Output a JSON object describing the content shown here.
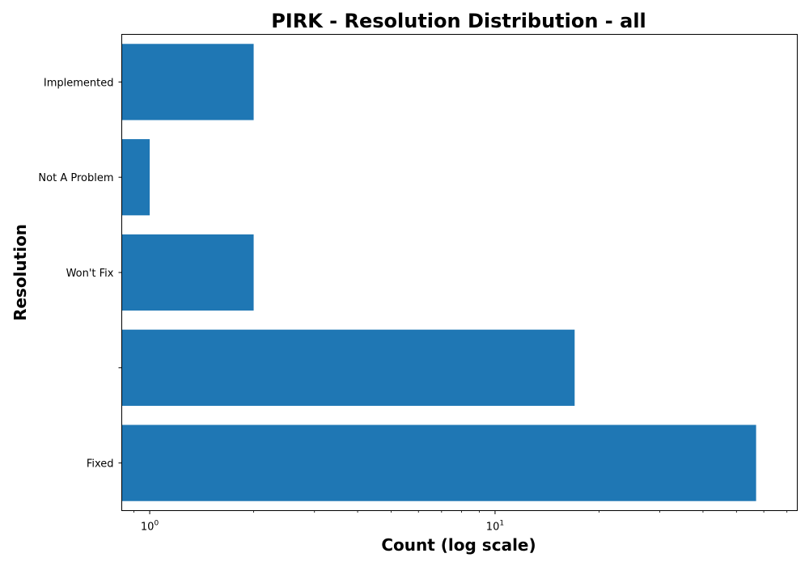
{
  "chart_data": {
    "type": "bar",
    "orientation": "horizontal",
    "title": "PIRK - Resolution Distribution - all",
    "xlabel": "Count (log scale)",
    "ylabel": "Resolution",
    "x_scale": "log",
    "xlim": [
      0.83,
      75
    ],
    "categories": [
      "Fixed",
      "",
      "Won't Fix",
      "Not A Problem",
      "Implemented"
    ],
    "values": [
      57,
      17,
      2,
      1,
      2
    ],
    "x_major_ticks": [
      {
        "value": 1,
        "base": "10",
        "exponent": "0"
      },
      {
        "value": 10,
        "base": "10",
        "exponent": "1"
      }
    ],
    "bar_color": "#1f77b4",
    "grid": false,
    "legend": "none"
  }
}
